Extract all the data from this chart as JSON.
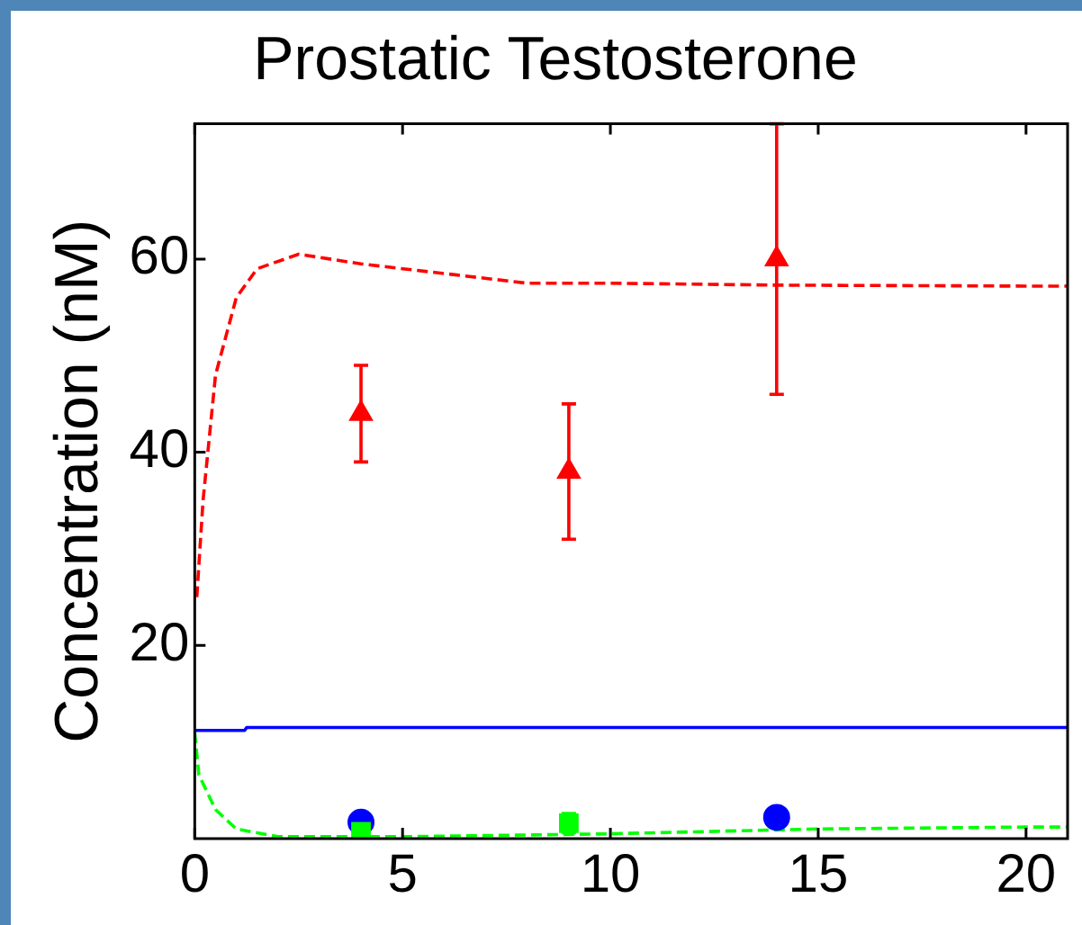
{
  "chart_data": {
    "type": "line",
    "title": "Prostatic Testosterone",
    "ylabel": "Concentration (nM)",
    "xlim": [
      0,
      21
    ],
    "xticks": [
      0,
      5,
      10,
      15,
      20
    ],
    "ylim": [
      0,
      74
    ],
    "yticks": [
      20,
      40,
      60
    ],
    "grid": false,
    "legend": false,
    "series": [
      {
        "type": "line",
        "color": "#ff0000",
        "line_style": "dashed",
        "marker": "none",
        "x": [
          0.05,
          0.2,
          0.5,
          1,
          1.5,
          2.5,
          4,
          6,
          8,
          10,
          14,
          20,
          21
        ],
        "values": [
          25,
          35,
          48,
          56,
          59,
          60.5,
          59.5,
          58.5,
          57.5,
          57.5,
          57.3,
          57.2,
          57.2
        ]
      },
      {
        "type": "line",
        "color": "#0000ff",
        "line_style": "solid",
        "marker": "none",
        "x": [
          0,
          1.2,
          1.25,
          21
        ],
        "values": [
          11.2,
          11.2,
          11.5,
          11.5
        ]
      },
      {
        "type": "line",
        "color": "#00ff00",
        "line_style": "dashed",
        "marker": "none",
        "x": [
          0,
          0.1,
          0.5,
          1,
          2,
          5,
          10,
          15,
          20,
          21
        ],
        "values": [
          11,
          6.6,
          3,
          1,
          0.2,
          0.2,
          0.5,
          1,
          1.2,
          1.2
        ]
      },
      {
        "type": "scatter",
        "color": "#ff0000",
        "marker": "triangle",
        "x": [
          4,
          9,
          14
        ],
        "values": [
          44,
          38,
          60
        ],
        "errors": [
          5,
          7,
          14
        ]
      },
      {
        "type": "scatter",
        "color": "#0000ff",
        "marker": "circle",
        "x": [
          4,
          14
        ],
        "values": [
          1.7,
          2.2
        ]
      },
      {
        "type": "scatter",
        "color": "#00ff00",
        "marker": "square",
        "x": [
          4,
          9
        ],
        "values": [
          0.7,
          1.6
        ],
        "errors": [
          null,
          1
        ]
      }
    ]
  }
}
